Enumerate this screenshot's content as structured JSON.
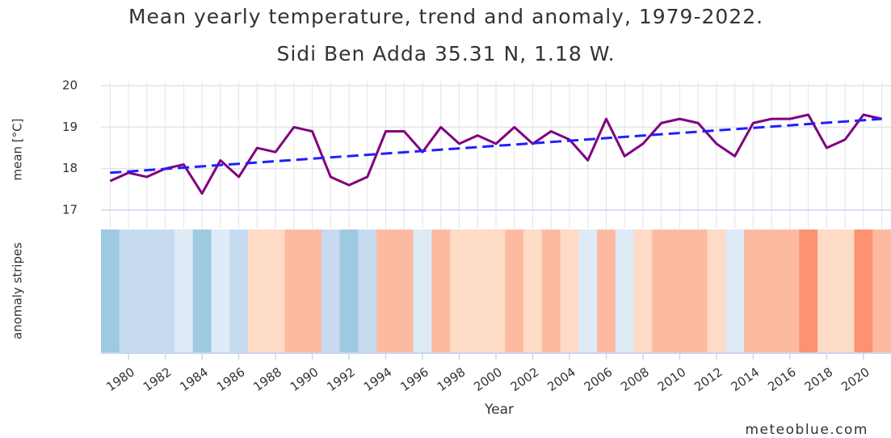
{
  "chart_data": {
    "type": "line",
    "title": "Mean yearly temperature, trend and anomaly, 1979-2022.",
    "subtitle": "Sidi Ben Adda 35.31 N, 1.18 W.",
    "y_label": "mean [°C]",
    "stripes_label": "anomaly stripes",
    "x_label": "Year",
    "credit": "meteoblue.com",
    "x": [
      1979,
      1980,
      1981,
      1982,
      1983,
      1984,
      1985,
      1986,
      1987,
      1988,
      1989,
      1990,
      1991,
      1992,
      1993,
      1994,
      1995,
      1996,
      1997,
      1998,
      1999,
      2000,
      2001,
      2002,
      2003,
      2004,
      2005,
      2006,
      2007,
      2008,
      2009,
      2010,
      2011,
      2012,
      2013,
      2014,
      2015,
      2016,
      2017,
      2018,
      2019,
      2020,
      2021
    ],
    "series": [
      {
        "color": "#800080",
        "values": [
          17.7,
          17.9,
          17.8,
          18.0,
          18.1,
          17.4,
          18.2,
          17.8,
          18.5,
          18.4,
          19.0,
          18.9,
          17.8,
          17.6,
          17.8,
          18.9,
          18.9,
          18.4,
          19.0,
          18.6,
          18.8,
          18.6,
          19.0,
          18.6,
          18.9,
          18.7,
          18.2,
          19.2,
          18.3,
          18.6,
          19.1,
          19.2,
          19.1,
          18.6,
          18.3,
          19.1,
          19.2,
          19.2,
          19.3,
          18.5,
          18.7,
          19.3,
          19.2
        ]
      },
      {
        "color": "#1f1fff",
        "dashed": true,
        "x": [
          1979,
          2021
        ],
        "values": [
          17.9,
          19.2
        ]
      }
    ],
    "stripe_colors": [
      "#9ecae1",
      "#c6dbef",
      "#c6dbef",
      "#c6dbef",
      "#deebf7",
      "#9ecae1",
      "#deebf7",
      "#c6dbef",
      "#fddbc7",
      "#fddbc7",
      "#fcbba1",
      "#fcbba1",
      "#c6dbef",
      "#9ecae1",
      "#c6dbef",
      "#fcbba1",
      "#fcbba1",
      "#deebf7",
      "#fcbba1",
      "#fddbc7",
      "#fddbc7",
      "#fddbc7",
      "#fcbba1",
      "#fddbc7",
      "#fcbba1",
      "#fddbc7",
      "#deebf7",
      "#fcbba1",
      "#deebf7",
      "#fddbc7",
      "#fcbba1",
      "#fcbba1",
      "#fcbba1",
      "#fddbc7",
      "#deebf7",
      "#fcbba1",
      "#fcbba1",
      "#fcbba1",
      "#fc9272",
      "#fddbc7",
      "#fddbc7",
      "#fc9272",
      "#fcbba1"
    ],
    "xlim": [
      1978.5,
      2021.5
    ],
    "xticks": [
      1980,
      1982,
      1984,
      1986,
      1988,
      1990,
      1992,
      1994,
      1996,
      1998,
      2000,
      2002,
      2004,
      2006,
      2008,
      2010,
      2012,
      2014,
      2016,
      2018,
      2020
    ],
    "ylim": [
      16.55,
      20.1
    ],
    "yticks": [
      17,
      18,
      19,
      20
    ],
    "grid": true
  }
}
